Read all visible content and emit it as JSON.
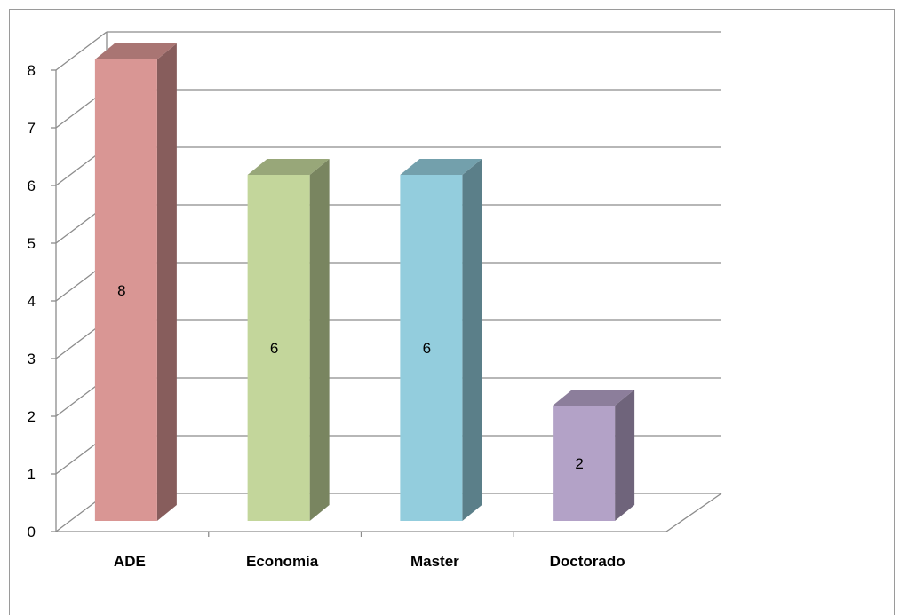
{
  "chart_data": {
    "type": "bar",
    "style": "3d-column",
    "categories": [
      "ADE",
      "Economía",
      "Master",
      "Doctorado"
    ],
    "values": [
      8,
      6,
      6,
      2
    ],
    "data_labels": [
      "8",
      "6",
      "6",
      "2"
    ],
    "colors": [
      "#d99694",
      "#c3d69b",
      "#93cddd",
      "#b3a2c7"
    ],
    "title": "",
    "xlabel": "",
    "ylabel": "",
    "ylim": [
      0,
      8
    ],
    "yticks": [
      "0",
      "1",
      "2",
      "3",
      "4",
      "5",
      "6",
      "7",
      "8"
    ],
    "grid": true,
    "legend": "none"
  }
}
